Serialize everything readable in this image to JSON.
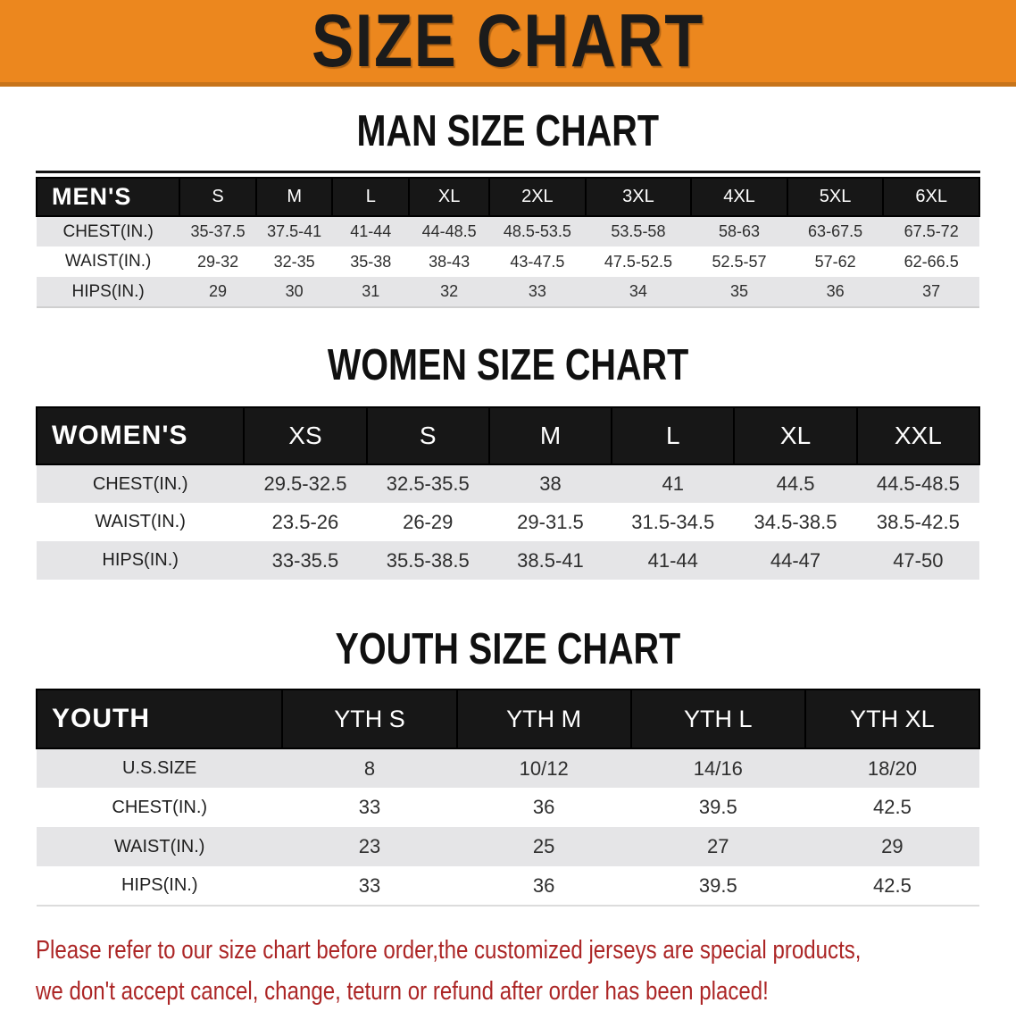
{
  "banner": {
    "title": "SIZE CHART",
    "bg_color": "#EC871E",
    "text_color": "#1b1b1b"
  },
  "sections": [
    {
      "heading": "MAN SIZE CHART",
      "group_label": "MEN'S",
      "columns": [
        "S",
        "M",
        "L",
        "XL",
        "2XL",
        "3XL",
        "4XL",
        "5XL",
        "6XL"
      ],
      "rows": [
        {
          "label": "CHEST(IN.)",
          "values": [
            "35-37.5",
            "37.5-41",
            "41-44",
            "44-48.5",
            "48.5-53.5",
            "53.5-58",
            "58-63",
            "63-67.5",
            "67.5-72"
          ]
        },
        {
          "label": "WAIST(IN.)",
          "values": [
            "29-32",
            "32-35",
            "35-38",
            "38-43",
            "43-47.5",
            "47.5-52.5",
            "52.5-57",
            "57-62",
            "62-66.5"
          ]
        },
        {
          "label": "HIPS(IN.)",
          "values": [
            "29",
            "30",
            "31",
            "32",
            "33",
            "34",
            "35",
            "36",
            "37"
          ]
        }
      ]
    },
    {
      "heading": "WOMEN SIZE CHART",
      "group_label": "WOMEN'S",
      "columns": [
        "XS",
        "S",
        "M",
        "L",
        "XL",
        "XXL"
      ],
      "rows": [
        {
          "label": "CHEST(IN.)",
          "values": [
            "29.5-32.5",
            "32.5-35.5",
            "38",
            "41",
            "44.5",
            "44.5-48.5"
          ]
        },
        {
          "label": "WAIST(IN.)",
          "values": [
            "23.5-26",
            "26-29",
            "29-31.5",
            "31.5-34.5",
            "34.5-38.5",
            "38.5-42.5"
          ]
        },
        {
          "label": "HIPS(IN.)",
          "values": [
            "33-35.5",
            "35.5-38.5",
            "38.5-41",
            "41-44",
            "44-47",
            "47-50"
          ]
        }
      ]
    },
    {
      "heading": "YOUTH SIZE CHART",
      "group_label": "YOUTH",
      "columns": [
        "YTH S",
        "YTH M",
        "YTH L",
        "YTH XL"
      ],
      "rows": [
        {
          "label": "U.S.SIZE",
          "values": [
            "8",
            "10/12",
            "14/16",
            "18/20"
          ]
        },
        {
          "label": "CHEST(IN.)",
          "values": [
            "33",
            "36",
            "39.5",
            "42.5"
          ]
        },
        {
          "label": "WAIST(IN.)",
          "values": [
            "23",
            "25",
            "27",
            "29"
          ]
        },
        {
          "label": "HIPS(IN.)",
          "values": [
            "33",
            "36",
            "39.5",
            "42.5"
          ]
        }
      ]
    }
  ],
  "footer": {
    "line1": "Please refer to our size chart before order,the customized jerseys are special products,",
    "line2": "we don't accept cancel, change, teturn or refund after order has been placed!",
    "text_color": "#AC2626"
  }
}
